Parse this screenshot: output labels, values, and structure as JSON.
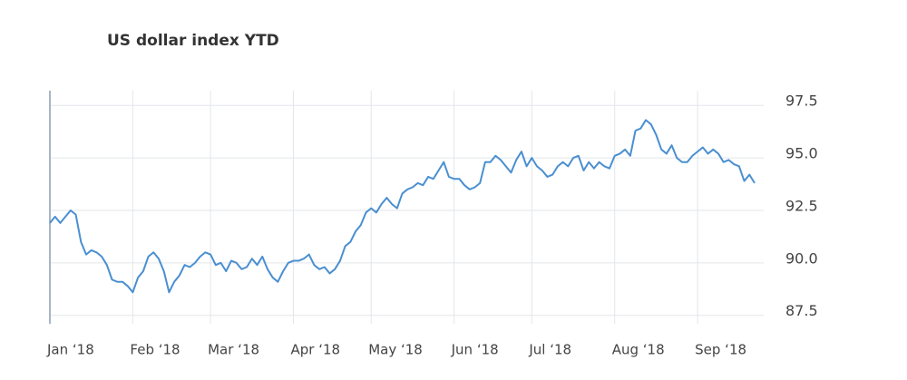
{
  "chart_data": {
    "type": "line",
    "title": "US dollar index YTD",
    "categories": [
      "Jan ‘18",
      null,
      null,
      null,
      null,
      null,
      null,
      null,
      null,
      null,
      null,
      null,
      null,
      null,
      null,
      null,
      "Feb ‘18",
      null,
      null,
      null,
      null,
      null,
      null,
      null,
      null,
      null,
      null,
      null,
      null,
      null,
      null,
      "Mar ‘18",
      null,
      null,
      null,
      null,
      null,
      null,
      null,
      null,
      null,
      null,
      null,
      null,
      null,
      null,
      null,
      "Apr ‘18",
      null,
      null,
      null,
      null,
      null,
      null,
      null,
      null,
      null,
      null,
      null,
      null,
      null,
      null,
      "May ‘18",
      null,
      null,
      null,
      null,
      null,
      null,
      null,
      null,
      null,
      null,
      null,
      null,
      null,
      null,
      null,
      "Jun ‘18",
      null,
      null,
      null,
      null,
      null,
      null,
      null,
      null,
      null,
      null,
      null,
      null,
      null,
      null,
      "Jul ‘18",
      null,
      null,
      null,
      null,
      null,
      null,
      null,
      null,
      null,
      null,
      null,
      null,
      null,
      null,
      null,
      "Aug ‘18",
      null,
      null,
      null,
      null,
      null,
      null,
      null,
      null,
      null,
      null,
      null,
      null,
      null,
      null,
      null,
      "Sep ‘18",
      null,
      null,
      null,
      null,
      null,
      null,
      null,
      null,
      null,
      null,
      null
    ],
    "values": [
      91.9,
      92.2,
      91.9,
      92.2,
      92.5,
      92.3,
      91.0,
      90.4,
      90.6,
      90.5,
      90.3,
      89.9,
      89.2,
      89.1,
      89.1,
      88.9,
      88.6,
      89.3,
      89.6,
      90.3,
      90.5,
      90.2,
      89.6,
      88.6,
      89.1,
      89.4,
      89.9,
      89.8,
      90.0,
      90.3,
      90.5,
      90.4,
      89.9,
      90.0,
      89.6,
      90.1,
      90.0,
      89.7,
      89.8,
      90.2,
      89.9,
      90.3,
      89.7,
      89.3,
      89.1,
      89.6,
      90.0,
      90.1,
      90.1,
      90.2,
      90.4,
      89.9,
      89.7,
      89.8,
      89.5,
      89.7,
      90.1,
      90.8,
      91.0,
      91.5,
      91.8,
      92.4,
      92.6,
      92.4,
      92.8,
      93.1,
      92.8,
      92.6,
      93.3,
      93.5,
      93.6,
      93.8,
      93.7,
      94.1,
      94.0,
      94.4,
      94.8,
      94.1,
      94.0,
      94.0,
      93.7,
      93.5,
      93.6,
      93.8,
      94.8,
      94.8,
      95.1,
      94.9,
      94.6,
      94.3,
      94.9,
      95.3,
      94.6,
      95.0,
      94.6,
      94.4,
      94.1,
      94.2,
      94.6,
      94.8,
      94.6,
      95.0,
      95.1,
      94.4,
      94.8,
      94.5,
      94.8,
      94.6,
      94.5,
      95.1,
      95.2,
      95.4,
      95.1,
      96.3,
      96.4,
      96.8,
      96.6,
      96.1,
      95.4,
      95.2,
      95.6,
      95.0,
      94.8,
      94.8,
      95.1,
      95.3,
      95.5,
      95.2,
      95.4,
      95.2,
      94.8,
      94.9,
      94.7,
      94.6,
      93.9,
      94.2,
      93.8
    ],
    "color": "#4a8fd0",
    "ylim": [
      87.1,
      98.2
    ],
    "yticks": [
      {
        "value": 87.5,
        "label": "87.5"
      },
      {
        "value": 90,
        "label": "90.0"
      },
      {
        "value": 92.5,
        "label": "92.5"
      },
      {
        "value": 95,
        "label": "95.0"
      },
      {
        "value": 97.5,
        "label": "97.5"
      }
    ],
    "grid": true
  }
}
